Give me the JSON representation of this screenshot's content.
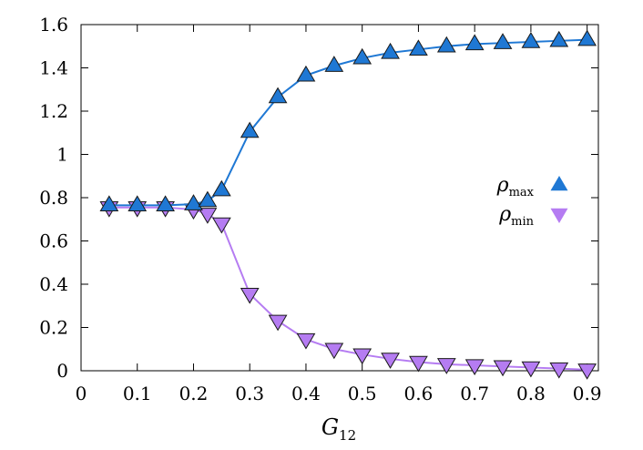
{
  "chart_data": {
    "type": "line",
    "title": "",
    "xlabel": {
      "main": "G",
      "sub": "12"
    },
    "ylabel": "",
    "xlim": [
      0,
      0.92
    ],
    "ylim": [
      0,
      1.6
    ],
    "xticks": [
      0,
      0.1,
      0.2,
      0.3,
      0.4,
      0.5,
      0.6,
      0.7,
      0.8,
      0.9
    ],
    "xtick_labels": [
      "0",
      "0.1",
      "0.2",
      "0.3",
      "0.4",
      "0.5",
      "0.6",
      "0.7",
      "0.8",
      "0.9"
    ],
    "yticks": [
      0,
      0.2,
      0.4,
      0.6,
      0.8,
      1,
      1.2,
      1.4,
      1.6
    ],
    "ytick_labels": [
      "0",
      "0.2",
      "0.4",
      "0.6",
      "0.8",
      "1",
      "1.2",
      "1.4",
      "1.6"
    ],
    "grid": false,
    "legend_position": "right",
    "x": [
      0.05,
      0.1,
      0.15,
      0.2,
      0.225,
      0.25,
      0.3,
      0.35,
      0.4,
      0.45,
      0.5,
      0.55,
      0.6,
      0.65,
      0.7,
      0.75,
      0.8,
      0.85,
      0.9
    ],
    "series": [
      {
        "name": "ρ_max",
        "label_main": "ρ",
        "label_sub": "max",
        "color": "#1f78d4",
        "marker": "triangle-up",
        "values": [
          0.765,
          0.765,
          0.765,
          0.77,
          0.785,
          0.835,
          1.105,
          1.265,
          1.365,
          1.41,
          1.445,
          1.47,
          1.485,
          1.5,
          1.51,
          1.515,
          1.52,
          1.525,
          1.53
        ]
      },
      {
        "name": "ρ_min",
        "label_main": "ρ",
        "label_sub": "min",
        "color": "#b57cf2",
        "marker": "triangle-down",
        "values": [
          0.755,
          0.755,
          0.755,
          0.745,
          0.725,
          0.68,
          0.355,
          0.23,
          0.145,
          0.1,
          0.075,
          0.055,
          0.04,
          0.03,
          0.025,
          0.02,
          0.015,
          0.01,
          0.005
        ]
      }
    ]
  }
}
